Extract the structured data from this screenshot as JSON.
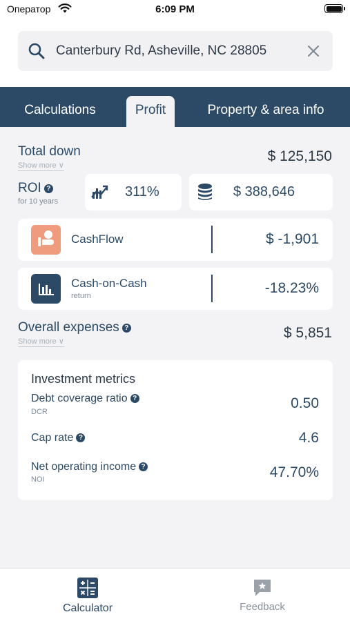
{
  "status_bar": {
    "carrier": "Оператор",
    "time": "6:09 PM"
  },
  "search": {
    "value": "Canterbury Rd, Asheville, NC 28805"
  },
  "tabs": [
    {
      "label": "Calculations",
      "active": false
    },
    {
      "label": "Profit",
      "active": true
    },
    {
      "label": "Property & area info",
      "active": false
    }
  ],
  "total_down": {
    "label": "Total down",
    "show_more": "Show more ∨",
    "value": "$ 125,150"
  },
  "roi": {
    "label": "ROI",
    "sub": "for 10 years",
    "percent": "311%",
    "amount": "$ 388,646"
  },
  "cashflow": {
    "label": "CashFlow",
    "value": "$ -1,901",
    "icon_color": "#ef9b7d"
  },
  "cash_on_cash": {
    "label": "Cash-on-Cash",
    "sub": "return",
    "value": "-18.23%",
    "icon_color": "#2c4a66"
  },
  "overall_expenses": {
    "label": "Overall expenses",
    "show_more": "Show more ∨",
    "value": "$ 5,851"
  },
  "investment_metrics": {
    "title": "Investment metrics",
    "items": [
      {
        "label": "Debt coverage ratio",
        "sub": "DCR",
        "value": "0.50"
      },
      {
        "label": "Cap rate",
        "sub": "",
        "value": "4.6"
      },
      {
        "label": "Net operating income",
        "sub": "NOI",
        "value": "47.70%"
      }
    ]
  },
  "bottom_nav": [
    {
      "label": "Calculator",
      "active": true,
      "icon": "calculator-icon"
    },
    {
      "label": "Feedback",
      "active": false,
      "icon": "feedback-icon"
    }
  ],
  "colors": {
    "primary": "#2c4a66",
    "accent": "#ef9b7d",
    "background": "#f3f3f5"
  }
}
